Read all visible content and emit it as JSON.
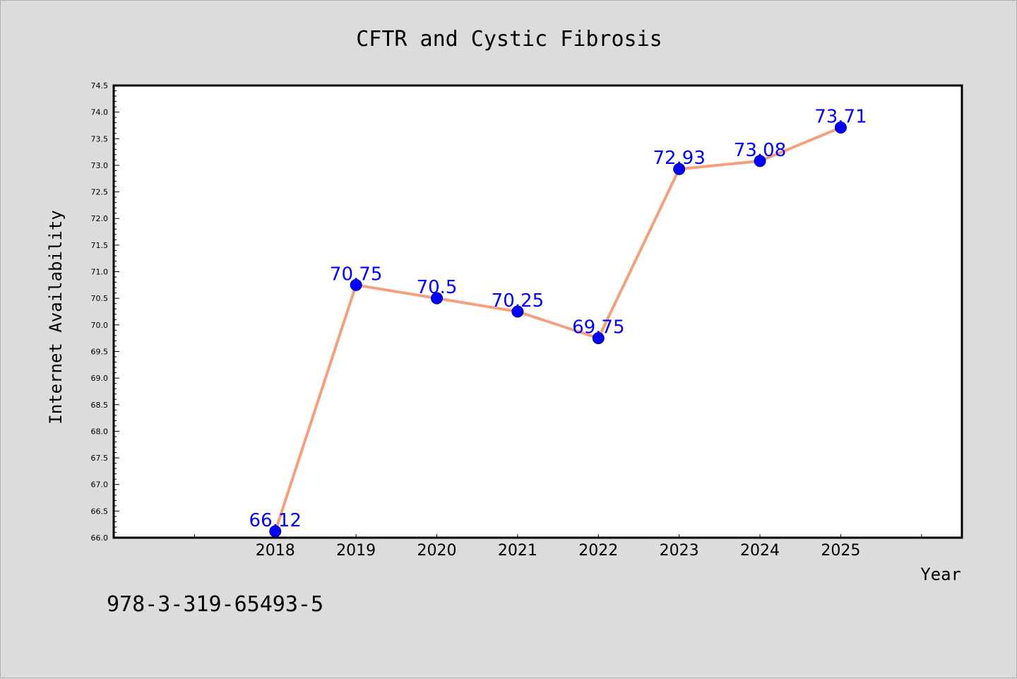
{
  "chart_data": {
    "type": "line",
    "title": "CFTR and Cystic Fibrosis",
    "xlabel": "Year",
    "ylabel": "Internet Availability",
    "x": [
      "2018",
      "2019",
      "2020",
      "2021",
      "2022",
      "2023",
      "2024",
      "2025"
    ],
    "series": [
      {
        "values": [
          66.12,
          70.75,
          70.5,
          70.25,
          69.75,
          72.93,
          73.08,
          73.71
        ],
        "data_labels": [
          "66.12",
          "70.75",
          "70.5",
          "70.25",
          "69.75",
          "72.93",
          "73.08",
          "73.71"
        ],
        "line_color": "#f4a07d",
        "marker_color": "#0000ff",
        "label_color": "#0000ff"
      }
    ],
    "ylim": [
      66.0,
      74.5
    ],
    "yticks": [
      "66.0",
      "66.5",
      "67.0",
      "67.5",
      "68.0",
      "68.5",
      "69.0",
      "69.5",
      "70.0",
      "70.5",
      "71.0",
      "71.5",
      "72.0",
      "72.5",
      "73.0",
      "73.5",
      "74.0",
      "74.5"
    ],
    "x_index_range": [
      -2,
      8.5
    ],
    "grid": false,
    "legend": "none"
  },
  "footer_text": "978-3-319-65493-5"
}
